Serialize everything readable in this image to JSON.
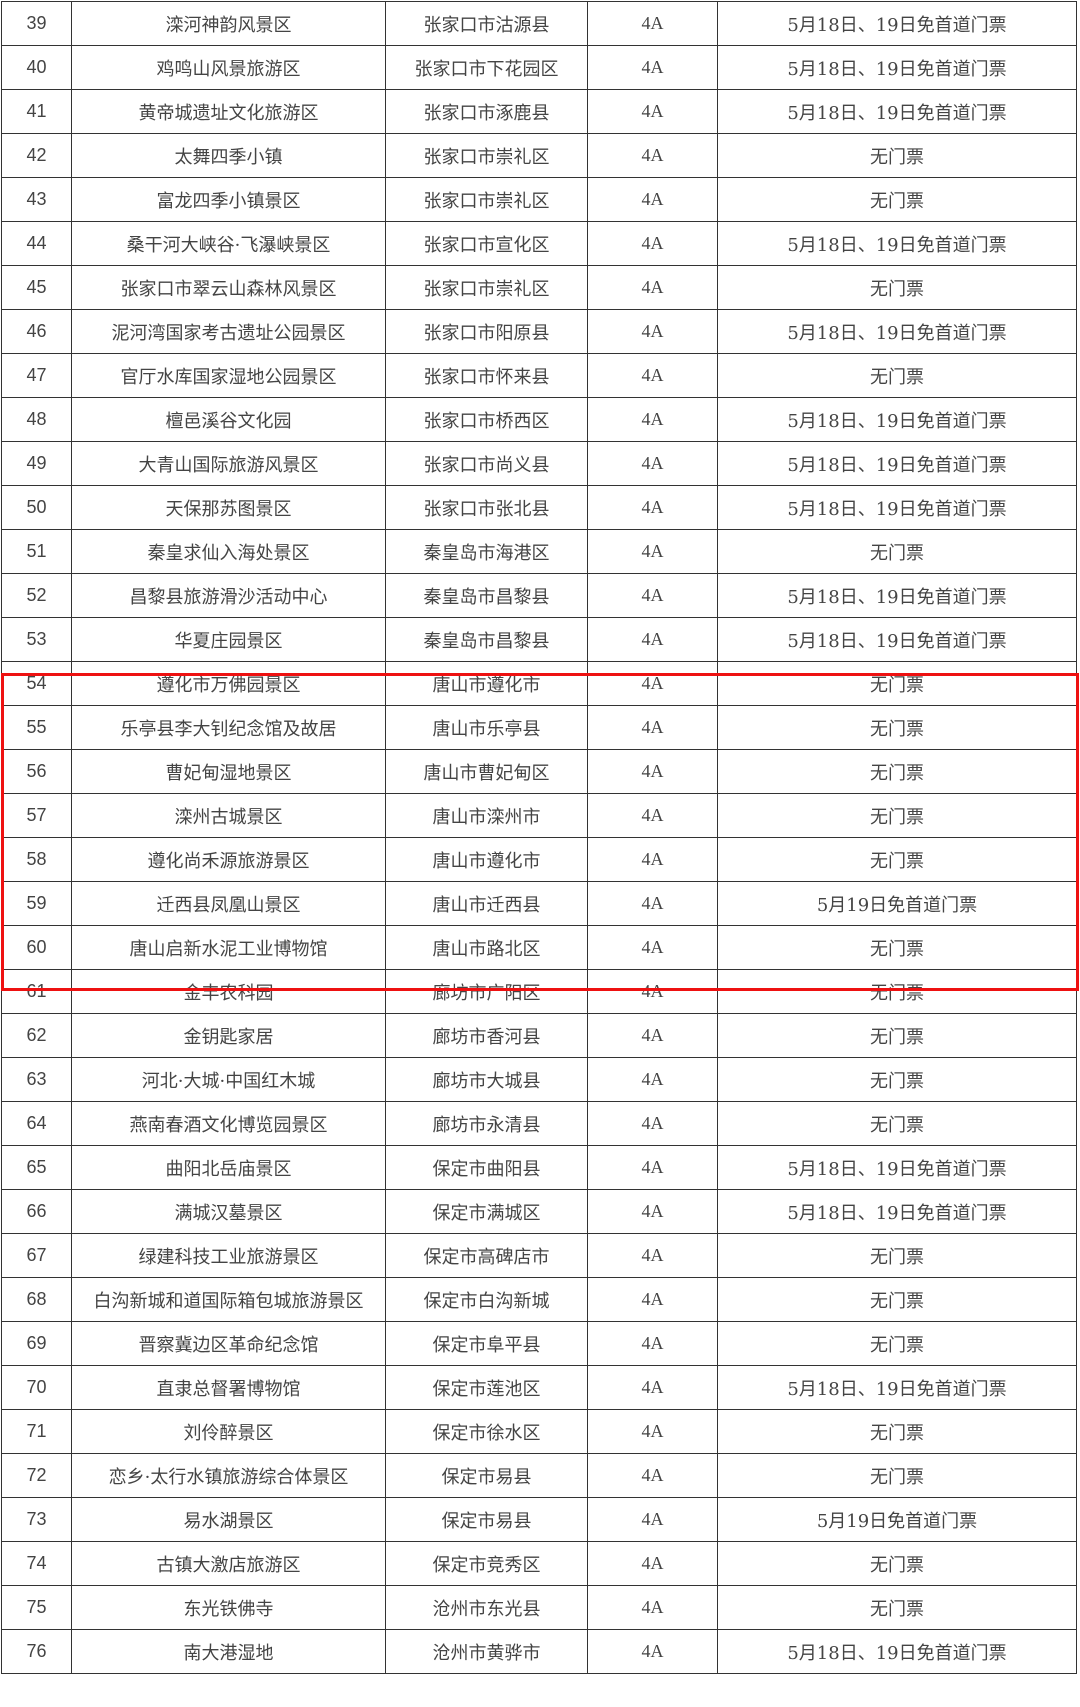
{
  "highlight_color": "#ee1111",
  "highlighted_rows": [
    "54",
    "60"
  ],
  "rows": [
    [
      "39",
      "滦河神韵风景区",
      "张家口市沽源县",
      "4A",
      "5月18日、19日免首道门票"
    ],
    [
      "40",
      "鸡鸣山风景旅游区",
      "张家口市下花园区",
      "4A",
      "5月18日、19日免首道门票"
    ],
    [
      "41",
      "黄帝城遗址文化旅游区",
      "张家口市涿鹿县",
      "4A",
      "5月18日、19日免首道门票"
    ],
    [
      "42",
      "太舞四季小镇",
      "张家口市崇礼区",
      "4A",
      "无门票"
    ],
    [
      "43",
      "富龙四季小镇景区",
      "张家口市崇礼区",
      "4A",
      "无门票"
    ],
    [
      "44",
      "桑干河大峡谷·飞瀑峡景区",
      "张家口市宣化区",
      "4A",
      "5月18日、19日免首道门票"
    ],
    [
      "45",
      "张家口市翠云山森林风景区",
      "张家口市崇礼区",
      "4A",
      "无门票"
    ],
    [
      "46",
      "泥河湾国家考古遗址公园景区",
      "张家口市阳原县",
      "4A",
      "5月18日、19日免首道门票"
    ],
    [
      "47",
      "官厅水库国家湿地公园景区",
      "张家口市怀来县",
      "4A",
      "无门票"
    ],
    [
      "48",
      "檀邑溪谷文化园",
      "张家口市桥西区",
      "4A",
      "5月18日、19日免首道门票"
    ],
    [
      "49",
      "大青山国际旅游风景区",
      "张家口市尚义县",
      "4A",
      "5月18日、19日免首道门票"
    ],
    [
      "50",
      "天保那苏图景区",
      "张家口市张北县",
      "4A",
      "5月18日、19日免首道门票"
    ],
    [
      "51",
      "秦皇求仙入海处景区",
      "秦皇岛市海港区",
      "4A",
      "无门票"
    ],
    [
      "52",
      "昌黎县旅游滑沙活动中心",
      "秦皇岛市昌黎县",
      "4A",
      "5月18日、19日免首道门票"
    ],
    [
      "53",
      "华夏庄园景区",
      "秦皇岛市昌黎县",
      "4A",
      "5月18日、19日免首道门票"
    ],
    [
      "54",
      "遵化市万佛园景区",
      "唐山市遵化市",
      "4A",
      "无门票"
    ],
    [
      "55",
      "乐亭县李大钊纪念馆及故居",
      "唐山市乐亭县",
      "4A",
      "无门票"
    ],
    [
      "56",
      "曹妃甸湿地景区",
      "唐山市曹妃甸区",
      "4A",
      "无门票"
    ],
    [
      "57",
      "滦州古城景区",
      "唐山市滦州市",
      "4A",
      "无门票"
    ],
    [
      "58",
      "遵化尚禾源旅游景区",
      "唐山市遵化市",
      "4A",
      "无门票"
    ],
    [
      "59",
      "迁西县凤凰山景区",
      "唐山市迁西县",
      "4A",
      "5月19日免首道门票"
    ],
    [
      "60",
      "唐山启新水泥工业博物馆",
      "唐山市路北区",
      "4A",
      "无门票"
    ],
    [
      "61",
      "金丰农科园",
      "廊坊市广阳区",
      "4A",
      "无门票"
    ],
    [
      "62",
      "金钥匙家居",
      "廊坊市香河县",
      "4A",
      "无门票"
    ],
    [
      "63",
      "河北·大城·中国红木城",
      "廊坊市大城县",
      "4A",
      "无门票"
    ],
    [
      "64",
      "燕南春酒文化博览园景区",
      "廊坊市永清县",
      "4A",
      "无门票"
    ],
    [
      "65",
      "曲阳北岳庙景区",
      "保定市曲阳县",
      "4A",
      "5月18日、19日免首道门票"
    ],
    [
      "66",
      "满城汉墓景区",
      "保定市满城区",
      "4A",
      "5月18日、19日免首道门票"
    ],
    [
      "67",
      "绿建科技工业旅游景区",
      "保定市高碑店市",
      "4A",
      "无门票"
    ],
    [
      "68",
      "白沟新城和道国际箱包城旅游景区",
      "保定市白沟新城",
      "4A",
      "无门票"
    ],
    [
      "69",
      "晋察冀边区革命纪念馆",
      "保定市阜平县",
      "4A",
      "无门票"
    ],
    [
      "70",
      "直隶总督署博物馆",
      "保定市莲池区",
      "4A",
      "5月18日、19日免首道门票"
    ],
    [
      "71",
      "刘伶醉景区",
      "保定市徐水区",
      "4A",
      "无门票"
    ],
    [
      "72",
      "恋乡·太行水镇旅游综合体景区",
      "保定市易县",
      "4A",
      "无门票"
    ],
    [
      "73",
      "易水湖景区",
      "保定市易县",
      "4A",
      "5月19日免首道门票"
    ],
    [
      "74",
      "古镇大激店旅游区",
      "保定市竞秀区",
      "4A",
      "无门票"
    ],
    [
      "75",
      "东光铁佛寺",
      "沧州市东光县",
      "4A",
      "无门票"
    ],
    [
      "76",
      "南大港湿地",
      "沧州市黄骅市",
      "4A",
      "5月18日、19日免首道门票"
    ]
  ]
}
